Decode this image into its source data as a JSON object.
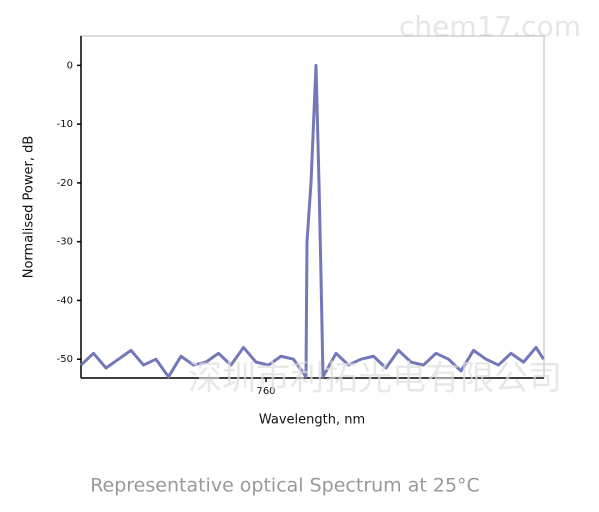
{
  "chart_data": {
    "type": "line",
    "caption": "Representative optical Spectrum at 25°C",
    "x_label": "Wavelength, nm",
    "y_label": "Normalised Power, dB",
    "watermarks": [
      "chem17.com",
      "深圳市利拓光电有限公司"
    ],
    "x": [
      756.3,
      756.55,
      756.8,
      757.05,
      757.3,
      757.55,
      757.8,
      758.05,
      758.3,
      758.55,
      758.8,
      759.05,
      759.3,
      759.55,
      759.8,
      760.05,
      760.3,
      760.55,
      760.8,
      760.82,
      760.9,
      761.0,
      761.06,
      761.1,
      761.14,
      761.4,
      761.65,
      761.9,
      762.15,
      762.4,
      762.65,
      762.9,
      763.15,
      763.4,
      763.65,
      763.9,
      764.15,
      764.4,
      764.65,
      764.9,
      765.15,
      765.4,
      765.55
    ],
    "series": [
      {
        "color": "#7478b8",
        "values": [
          -51,
          -49,
          -51.5,
          -50,
          -48.5,
          -51,
          -50,
          -53,
          -49.5,
          -51,
          -50.5,
          -49,
          -51,
          -48,
          -50.5,
          -51,
          -49.5,
          -50,
          -53,
          -30,
          -20,
          0,
          -20,
          -36,
          -53,
          -49,
          -51,
          -50,
          -49.5,
          -51.5,
          -48.5,
          -50.5,
          -51,
          -49,
          -50,
          -52,
          -48.5,
          -50,
          -51,
          -49,
          -50.5,
          -48,
          -50
        ]
      }
    ],
    "xlim": [
      756.3,
      765.56
    ],
    "xticks": [
      760
    ],
    "ylim": [
      -53.2,
      5
    ],
    "yticks": [
      0,
      -10,
      -20,
      -30,
      -40,
      -50
    ]
  }
}
